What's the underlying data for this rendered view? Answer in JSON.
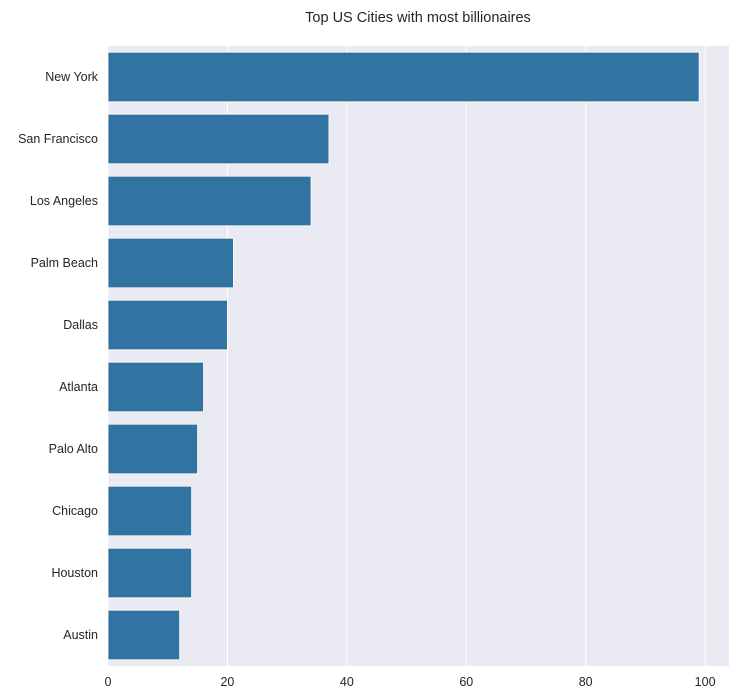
{
  "chart_data": {
    "type": "bar",
    "orientation": "horizontal",
    "title": "Top US Cities with most billionaires",
    "xlabel": "",
    "ylabel": "",
    "categories": [
      "New York",
      "San Francisco",
      "Los Angeles",
      "Palm Beach",
      "Dallas",
      "Atlanta",
      "Palo Alto",
      "Chicago",
      "Houston",
      "Austin"
    ],
    "values": [
      99,
      37,
      34,
      21,
      20,
      16,
      15,
      14,
      14,
      12
    ],
    "xlim": [
      0,
      104
    ],
    "xticks": [
      0,
      20,
      40,
      60,
      80,
      100
    ],
    "grid": true,
    "bar_color": "#3274a1",
    "background_color": "#eaeaf2",
    "grid_color": "#ffffff"
  }
}
